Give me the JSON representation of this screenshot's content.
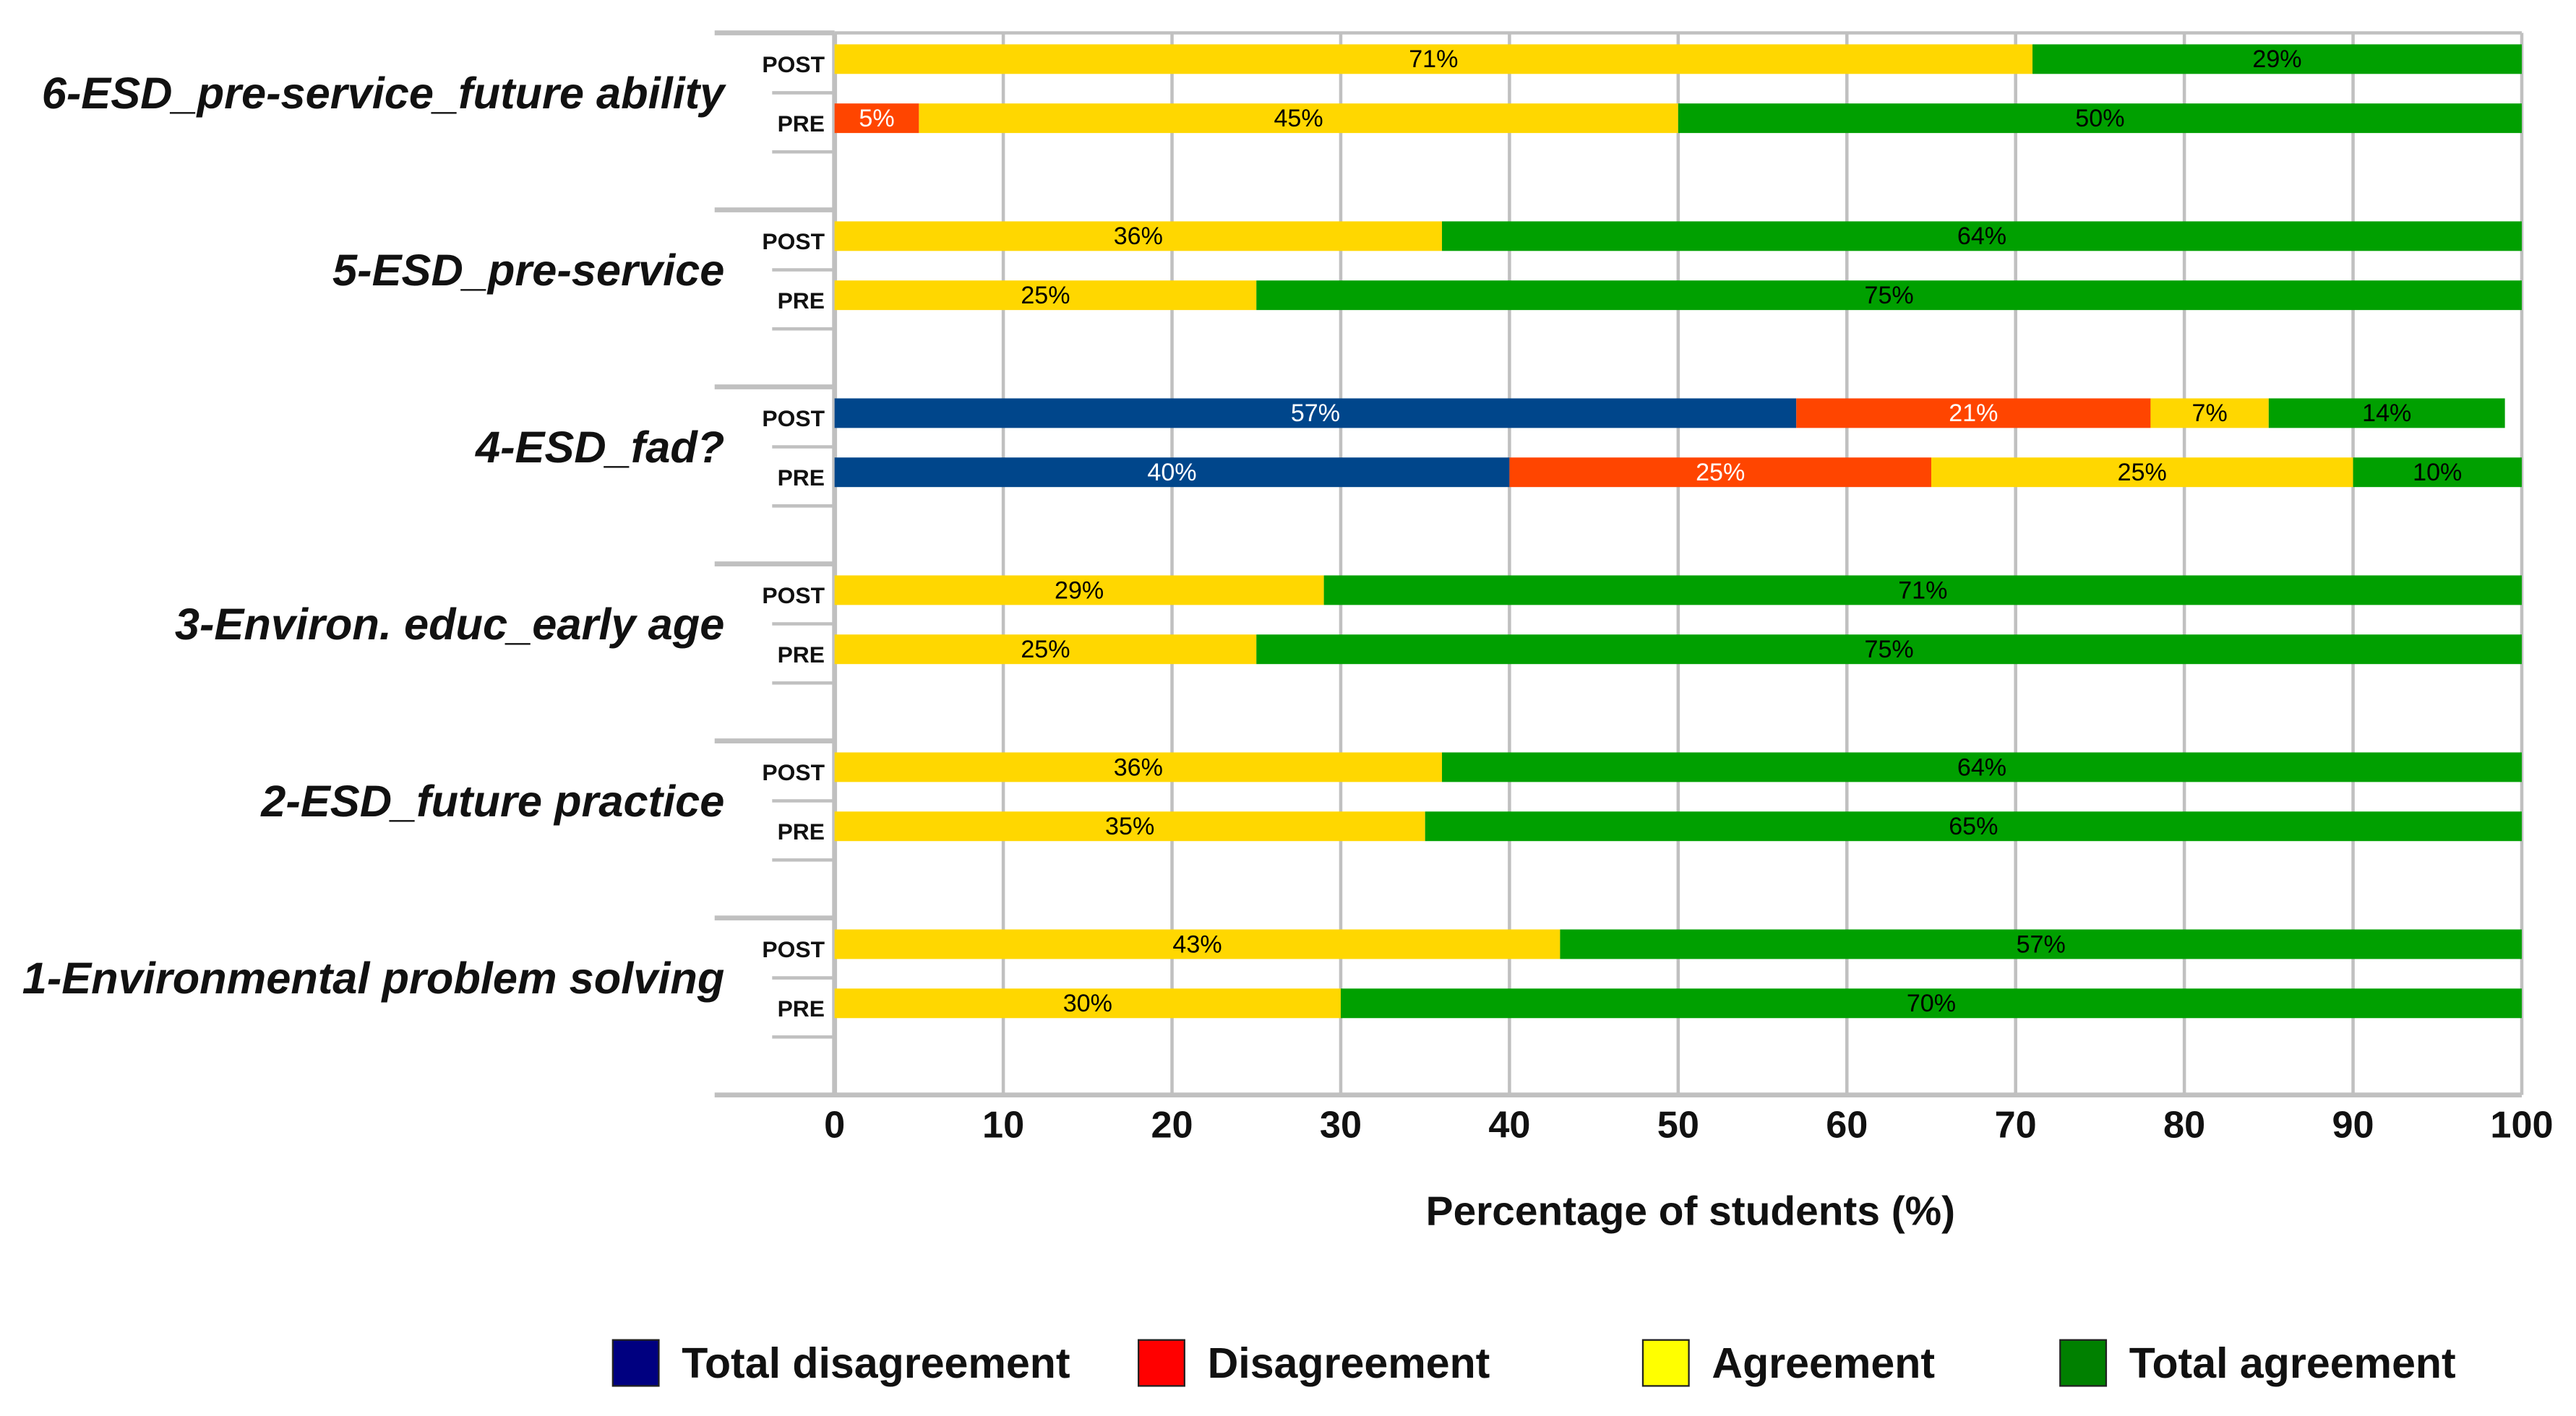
{
  "chart_data": {
    "type": "bar",
    "orientation": "horizontal-stacked",
    "xlabel": "Percentage of students (%)",
    "xlim": [
      0,
      100
    ],
    "xticks": [
      "0",
      "10",
      "20",
      "30",
      "40",
      "50",
      "60",
      "70",
      "80",
      "90",
      "100"
    ],
    "grid": true,
    "legend_position": "bottom",
    "series_names": [
      "Total disagreement",
      "Disagreement",
      "Agreement",
      "Total agreement"
    ],
    "series_colors": [
      "#00468B",
      "#FF4500",
      "#FFD700",
      "#00A000"
    ],
    "legend_colors": [
      "#000080",
      "#FF0000",
      "#FFFF00",
      "#008000"
    ],
    "label_colors": [
      "#FFFFFF",
      "#FFFFFF",
      "#000000",
      "#000000"
    ],
    "groups": [
      {
        "name": "6-ESD_pre-service_future ability",
        "bars": [
          {
            "label": "POST",
            "values": [
              0,
              0,
              71,
              29
            ],
            "labels": [
              "",
              "",
              "71%",
              "29%"
            ]
          },
          {
            "label": "PRE",
            "values": [
              0,
              5,
              45,
              50
            ],
            "labels": [
              "",
              "5%",
              "45%",
              "50%"
            ]
          }
        ]
      },
      {
        "name": "5-ESD_pre-service",
        "bars": [
          {
            "label": "POST",
            "values": [
              0,
              0,
              36,
              64
            ],
            "labels": [
              "",
              "",
              "36%",
              "64%"
            ]
          },
          {
            "label": "PRE",
            "values": [
              0,
              0,
              25,
              75
            ],
            "labels": [
              "",
              "",
              "25%",
              "75%"
            ]
          }
        ]
      },
      {
        "name": "4-ESD_fad?",
        "bars": [
          {
            "label": "POST",
            "values": [
              57,
              21,
              7,
              14
            ],
            "labels": [
              "57%",
              "21%",
              "7%",
              "14%"
            ]
          },
          {
            "label": "PRE",
            "values": [
              40,
              25,
              25,
              10
            ],
            "labels": [
              "40%",
              "25%",
              "25%",
              "10%"
            ]
          }
        ]
      },
      {
        "name": "3-Environ. educ_early age",
        "bars": [
          {
            "label": "POST",
            "values": [
              0,
              0,
              29,
              71
            ],
            "labels": [
              "",
              "",
              "29%",
              "71%"
            ]
          },
          {
            "label": "PRE",
            "values": [
              0,
              0,
              25,
              75
            ],
            "labels": [
              "",
              "",
              "25%",
              "75%"
            ]
          }
        ]
      },
      {
        "name": "2-ESD_future practice",
        "bars": [
          {
            "label": "POST",
            "values": [
              0,
              0,
              36,
              64
            ],
            "labels": [
              "",
              "",
              "36%",
              "64%"
            ]
          },
          {
            "label": "PRE",
            "values": [
              0,
              0,
              35,
              65
            ],
            "labels": [
              "",
              "",
              "35%",
              "65%"
            ]
          }
        ]
      },
      {
        "name": "1-Environmental problem solving",
        "bars": [
          {
            "label": "POST",
            "values": [
              0,
              0,
              43,
              57
            ],
            "labels": [
              "",
              "",
              "43%",
              "57%"
            ]
          },
          {
            "label": "PRE",
            "values": [
              0,
              0,
              30,
              70
            ],
            "labels": [
              "",
              "",
              "30%",
              "70%"
            ]
          }
        ]
      }
    ]
  }
}
